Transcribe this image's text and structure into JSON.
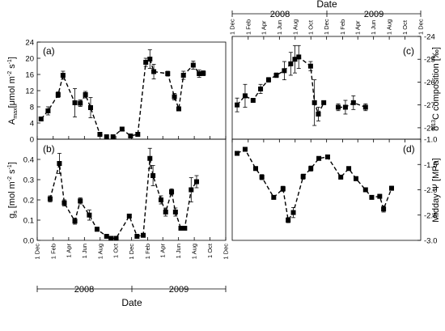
{
  "chart_data": [
    {
      "type": "line",
      "panel": "(a)",
      "ylabel_main": "A",
      "ylabel_sub": "max",
      "ylabel_unit": "[μmol m",
      "ylabel_exp1": "-2",
      "ylabel_mid": " s",
      "ylabel_exp2": "-1",
      "ylabel_end": "]",
      "ylim": [
        0,
        24
      ],
      "yticks": [
        "0",
        "4",
        "8",
        "12",
        "16",
        "20",
        "24"
      ],
      "grid": false,
      "series": [
        {
          "x": [
            "2007-12-16",
            "2008-01-12",
            "2008-02-20",
            "2008-03-10",
            "2008-04-25",
            "2008-05-16",
            "2008-06-05",
            "2008-06-25",
            "2008-07-31",
            "2008-08-26",
            "2008-09-20",
            "2008-10-25",
            "2008-11-27",
            "2008-12-25",
            "2009-01-25",
            "2009-02-10",
            "2009-02-25",
            "2009-04-20",
            "2009-05-16",
            "2009-06-02",
            "2009-06-20",
            "2009-07-28",
            "2009-08-20",
            "2009-09-05"
          ],
          "y": [
            5.0,
            7.0,
            11.0,
            15.8,
            9.0,
            8.9,
            11.0,
            7.8,
            1.2,
            0.6,
            0.6,
            2.5,
            0.8,
            1.2,
            19.0,
            19.8,
            16.7,
            16.2,
            10.5,
            7.5,
            15.8,
            18.3,
            16.2,
            16.3
          ],
          "err": [
            0.4,
            1.0,
            0.7,
            1.0,
            3.5,
            0.8,
            0.8,
            2.5,
            0.2,
            0.2,
            0.2,
            0.3,
            0.2,
            0.3,
            1.0,
            2.3,
            1.8,
            0.6,
            0.8,
            0.3,
            1.0,
            1.0,
            0.9,
            0.6
          ]
        }
      ]
    },
    {
      "type": "line",
      "panel": "(b)",
      "ylabel_main": "g",
      "ylabel_sub": "s",
      "ylabel_unit": " [mol m",
      "ylabel_exp1": "-2",
      "ylabel_mid": " s",
      "ylabel_exp2": "-1",
      "ylabel_end": "]",
      "ylim": [
        0,
        0.5
      ],
      "yticks": [
        "0.0",
        "0.1",
        "0.2",
        "0.3",
        "0.4"
      ],
      "grid": false,
      "series": [
        {
          "x": [
            "2008-01-20",
            "2008-02-25",
            "2008-03-15",
            "2008-04-25",
            "2008-05-16",
            "2008-06-20",
            "2008-07-20",
            "2008-08-26",
            "2008-09-12",
            "2008-10-02",
            "2008-11-22",
            "2008-12-22",
            "2009-01-15",
            "2009-02-10",
            "2009-02-22",
            "2009-03-25",
            "2009-04-12",
            "2009-05-05",
            "2009-05-20",
            "2009-06-10",
            "2009-06-25",
            "2009-07-20",
            "2009-08-10"
          ],
          "y": [
            0.205,
            0.38,
            0.185,
            0.095,
            0.195,
            0.125,
            0.055,
            0.02,
            0.01,
            0.01,
            0.12,
            0.02,
            0.025,
            0.405,
            0.32,
            0.2,
            0.14,
            0.24,
            0.14,
            0.06,
            0.06,
            0.25,
            0.29
          ],
          "err": [
            0.015,
            0.05,
            0.015,
            0.015,
            0.015,
            0.025,
            0.01,
            0.005,
            0.003,
            0.003,
            0.005,
            0.005,
            0.005,
            0.05,
            0.05,
            0.02,
            0.02,
            0.015,
            0.02,
            0.005,
            0.005,
            0.06,
            0.03
          ]
        }
      ]
    },
    {
      "type": "line",
      "panel": "(c)",
      "ylabel_main": "δ",
      "ylabel_exp1": "13",
      "ylabel_mid": "C composition [‰]",
      "ylim": [
        -28.5,
        -24
      ],
      "yticks": [
        "-24",
        "-25",
        "-26",
        "-27",
        "-28"
      ],
      "grid": false,
      "series": [
        {
          "x": [
            "2007-12-20",
            "2008-01-20",
            "2008-02-20",
            "2008-03-20",
            "2008-04-20",
            "2008-05-20",
            "2008-06-20",
            "2008-07-15",
            "2008-07-31",
            "2008-08-15",
            "2008-09-30",
            "2008-10-15",
            "2008-10-30",
            "2008-11-20"
          ],
          "y": [
            -27.0,
            -26.6,
            -26.8,
            -26.3,
            -25.9,
            -25.7,
            -25.5,
            -25.2,
            -25.0,
            -24.9,
            -25.3,
            -26.9,
            -27.4,
            -26.9
          ],
          "err": [
            0.3,
            0.5,
            0.05,
            0.2,
            0.1,
            0.1,
            0.4,
            0.5,
            0.6,
            0.5,
            0.2,
            1.0,
            0.3,
            0.05
          ]
        },
        {
          "x": [
            "2009-01-15",
            "2009-02-12",
            "2009-03-15",
            "2009-05-01"
          ],
          "y": [
            -27.1,
            -27.1,
            -26.9,
            -27.1
          ],
          "err": [
            0.15,
            0.3,
            0.3,
            0.15
          ]
        }
      ]
    },
    {
      "type": "line",
      "panel": "(d)",
      "ylabel_main": "Midday Ψ [MPa]",
      "ylim": [
        -3.0,
        -1.0
      ],
      "yticks": [
        "-1.0",
        "-1.5",
        "-2.0",
        "-2.5",
        "-3.0"
      ],
      "grid": false,
      "series": [
        {
          "x": [
            "2007-12-20",
            "2008-01-20",
            "2008-03-01",
            "2008-03-25",
            "2008-05-10",
            "2008-06-15",
            "2008-07-05",
            "2008-07-25",
            "2008-09-01",
            "2008-10-01",
            "2008-11-01",
            "2008-12-05",
            "2009-01-25",
            "2009-02-25",
            "2009-03-25",
            "2009-05-01",
            "2009-05-25",
            "2009-06-25",
            "2009-07-10",
            "2009-08-10"
          ],
          "y": [
            -1.28,
            -1.2,
            -1.58,
            -1.75,
            -2.15,
            -1.98,
            -2.6,
            -2.45,
            -1.74,
            -1.58,
            -1.38,
            -1.35,
            -1.75,
            -1.58,
            -1.78,
            -2.0,
            -2.15,
            -2.13,
            -2.38,
            -1.97
          ],
          "err": [
            0.02,
            0.02,
            0.03,
            0.05,
            0.03,
            0.05,
            0.05,
            0.1,
            0.05,
            0.05,
            0.03,
            0.03,
            0.03,
            0.03,
            0.04,
            0.04,
            0.03,
            0.04,
            0.06,
            0.04
          ]
        }
      ]
    }
  ],
  "axes": {
    "left_xticks": [
      "1 Dec",
      "1 Feb",
      "1 Apr",
      "1 Jun",
      "1 Aug",
      "1 Oct",
      "1 Dec",
      "1 Feb",
      "1 Apr",
      "1 Jun",
      "1 Aug",
      "1 Oct",
      "1 Dec"
    ],
    "left_xtick_dates": [
      "2007-12-01",
      "2008-02-01",
      "2008-04-01",
      "2008-06-01",
      "2008-08-01",
      "2008-10-01",
      "2008-12-01",
      "2009-02-01",
      "2009-04-01",
      "2009-06-01",
      "2009-08-01",
      "2009-10-01",
      "2009-12-01"
    ],
    "right_xticks": [
      "1 Dec",
      "1 Feb",
      "1 Apr",
      "1 Jun",
      "1 Aug",
      "1 Oct",
      "1 Dec",
      "1 Feb",
      "1 Apr",
      "1 Jun",
      "1 Aug",
      "1 Oct",
      "1 Dec"
    ],
    "year_2008": "2008",
    "year_2009": "2009",
    "date_label_bottom": "Date",
    "date_label_top": "Date"
  }
}
